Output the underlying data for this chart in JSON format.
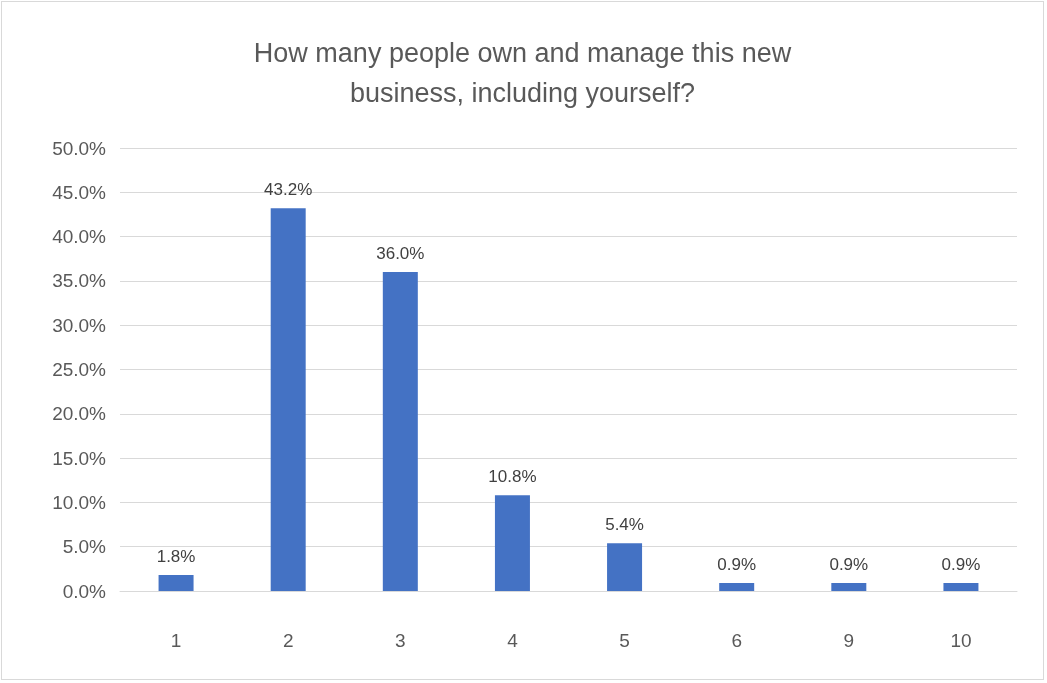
{
  "chart_data": {
    "type": "bar",
    "title": "How many people own and manage this new\nbusiness, including yourself?",
    "categories": [
      "1",
      "2",
      "3",
      "4",
      "5",
      "6",
      "9",
      "10"
    ],
    "values": [
      1.8,
      43.2,
      36.0,
      10.8,
      5.4,
      0.9,
      0.9,
      0.9
    ],
    "value_labels": [
      "1.8%",
      "43.2%",
      "36.0%",
      "10.8%",
      "5.4%",
      "0.9%",
      "0.9%",
      "0.9%"
    ],
    "color": "#4472c4",
    "ylim": [
      0,
      50
    ],
    "yticks": [
      {
        "value": 0,
        "label": "0.0%"
      },
      {
        "value": 5,
        "label": "5.0%"
      },
      {
        "value": 10,
        "label": "10.0%"
      },
      {
        "value": 15,
        "label": "15.0%"
      },
      {
        "value": 20,
        "label": "20.0%"
      },
      {
        "value": 25,
        "label": "25.0%"
      },
      {
        "value": 30,
        "label": "30.0%"
      },
      {
        "value": 35,
        "label": "35.0%"
      },
      {
        "value": 40,
        "label": "40.0%"
      },
      {
        "value": 45,
        "label": "45.0%"
      },
      {
        "value": 50,
        "label": "50.0%"
      }
    ],
    "grid": true
  }
}
